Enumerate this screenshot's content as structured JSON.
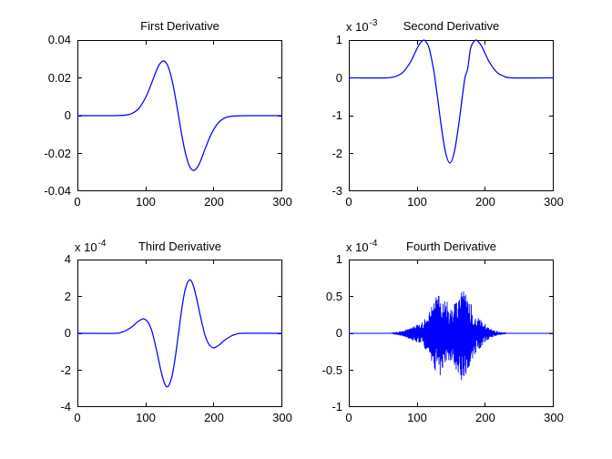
{
  "figure": {
    "background": "#ffffff",
    "axes_color": "#000000",
    "text_color": "#000000",
    "line_color": "#0000ff"
  },
  "chart_data": [
    {
      "id": "first-derivative",
      "type": "line",
      "title": "First Derivative",
      "exponent_base": "",
      "exponent_power": "",
      "xlim": [
        0,
        300
      ],
      "ylim": [
        -0.04,
        0.04
      ],
      "x_tick_labels": [
        "0",
        "100",
        "200",
        "300"
      ],
      "y_tick_labels": [
        "0.04",
        "0.02",
        "0",
        "-0.02",
        "-0.04"
      ],
      "line_color": "#0000ff",
      "smooth": true,
      "points": [
        [
          0,
          0
        ],
        [
          50,
          0
        ],
        [
          60,
          0.0001
        ],
        [
          70,
          0.0003
        ],
        [
          80,
          0.0012
        ],
        [
          90,
          0.0039
        ],
        [
          100,
          0.0097
        ],
        [
          108,
          0.0166
        ],
        [
          115,
          0.0233
        ],
        [
          120,
          0.0271
        ],
        [
          126,
          0.029
        ],
        [
          132,
          0.0267
        ],
        [
          138,
          0.0196
        ],
        [
          143,
          0.0106
        ],
        [
          148,
          0
        ],
        [
          153,
          -0.0106
        ],
        [
          158,
          -0.0196
        ],
        [
          164,
          -0.0267
        ],
        [
          170,
          -0.029
        ],
        [
          176,
          -0.0271
        ],
        [
          181,
          -0.0233
        ],
        [
          188,
          -0.0166
        ],
        [
          196,
          -0.0097
        ],
        [
          206,
          -0.0039
        ],
        [
          216,
          -0.0012
        ],
        [
          226,
          -0.0003
        ],
        [
          236,
          -0.0001
        ],
        [
          246,
          0
        ],
        [
          300,
          0
        ]
      ]
    },
    {
      "id": "second-derivative",
      "type": "line",
      "title": "Second Derivative",
      "exponent_base": "x 10",
      "exponent_power": "-3",
      "xlim": [
        0,
        300
      ],
      "ylim": [
        -3,
        1
      ],
      "x_tick_labels": [
        "0",
        "100",
        "200",
        "300"
      ],
      "y_tick_labels": [
        "1",
        "0",
        "-1",
        "-2",
        "-3"
      ],
      "line_color": "#0000ff",
      "smooth": true,
      "points": [
        [
          0,
          0
        ],
        [
          55,
          0
        ],
        [
          70,
          0.05
        ],
        [
          80,
          0.16
        ],
        [
          90,
          0.41
        ],
        [
          96,
          0.63
        ],
        [
          102,
          0.85
        ],
        [
          106,
          0.95
        ],
        [
          110,
          1.0
        ],
        [
          114,
          0.93
        ],
        [
          118,
          0.76
        ],
        [
          124,
          0.24
        ],
        [
          126,
          0
        ],
        [
          130,
          -0.53
        ],
        [
          136,
          -1.36
        ],
        [
          142,
          -2.0
        ],
        [
          148,
          -2.25
        ],
        [
          154,
          -2.0
        ],
        [
          160,
          -1.36
        ],
        [
          166,
          -0.53
        ],
        [
          170,
          0
        ],
        [
          174,
          0.24
        ],
        [
          178,
          0.76
        ],
        [
          182,
          0.93
        ],
        [
          186,
          1.0
        ],
        [
          190,
          0.95
        ],
        [
          194,
          0.85
        ],
        [
          200,
          0.63
        ],
        [
          206,
          0.41
        ],
        [
          216,
          0.16
        ],
        [
          226,
          0.05
        ],
        [
          240,
          0
        ],
        [
          300,
          0
        ]
      ]
    },
    {
      "id": "third-derivative",
      "type": "line",
      "title": "Third Derivative",
      "exponent_base": "x 10",
      "exponent_power": "-4",
      "xlim": [
        0,
        300
      ],
      "ylim": [
        -4,
        4
      ],
      "x_tick_labels": [
        "0",
        "100",
        "200",
        "300"
      ],
      "y_tick_labels": [
        "4",
        "2",
        "0",
        "-2",
        "-4"
      ],
      "line_color": "#0000ff",
      "smooth": true,
      "points": [
        [
          0,
          0
        ],
        [
          55,
          0
        ],
        [
          65,
          0.07
        ],
        [
          70,
          0.13
        ],
        [
          80,
          0.36
        ],
        [
          88,
          0.62
        ],
        [
          93,
          0.74
        ],
        [
          97,
          0.79
        ],
        [
          101,
          0.7
        ],
        [
          104,
          0.57
        ],
        [
          107,
          0.33
        ],
        [
          110,
          0
        ],
        [
          116,
          -0.94
        ],
        [
          122,
          -1.98
        ],
        [
          127,
          -2.66
        ],
        [
          132,
          -2.9
        ],
        [
          138,
          -2.4
        ],
        [
          143,
          -1.37
        ],
        [
          148,
          0
        ],
        [
          153,
          1.37
        ],
        [
          158,
          2.4
        ],
        [
          164,
          2.9
        ],
        [
          169,
          2.66
        ],
        [
          174,
          1.98
        ],
        [
          180,
          0.94
        ],
        [
          186,
          0
        ],
        [
          189,
          -0.33
        ],
        [
          192,
          -0.57
        ],
        [
          195,
          -0.7
        ],
        [
          199,
          -0.79
        ],
        [
          203,
          -0.74
        ],
        [
          208,
          -0.62
        ],
        [
          216,
          -0.36
        ],
        [
          226,
          -0.13
        ],
        [
          231,
          -0.07
        ],
        [
          241,
          0
        ],
        [
          300,
          0
        ]
      ]
    },
    {
      "id": "fourth-derivative",
      "type": "line-noisy",
      "title": "Fourth Derivative",
      "exponent_base": "x 10",
      "exponent_power": "-4",
      "xlim": [
        0,
        300
      ],
      "ylim": [
        -1,
        1
      ],
      "x_tick_labels": [
        "0",
        "100",
        "200",
        "300"
      ],
      "y_tick_labels": [
        "1",
        "0.5",
        "0",
        "-0.5",
        "-1"
      ],
      "line_color": "#0000ff",
      "baseline_y": 0,
      "noise_x_range": [
        60,
        240
      ],
      "noise_envelope": [
        [
          60,
          0.01
        ],
        [
          70,
          0.02
        ],
        [
          80,
          0.04
        ],
        [
          88,
          0.07
        ],
        [
          95,
          0.1
        ],
        [
          102,
          0.12
        ],
        [
          108,
          0.16
        ],
        [
          114,
          0.22
        ],
        [
          120,
          0.33
        ],
        [
          126,
          0.47
        ],
        [
          131,
          0.58
        ],
        [
          136,
          0.52
        ],
        [
          141,
          0.44
        ],
        [
          146,
          0.36
        ],
        [
          150,
          0.34
        ],
        [
          155,
          0.42
        ],
        [
          160,
          0.52
        ],
        [
          165,
          0.6
        ],
        [
          170,
          0.55
        ],
        [
          175,
          0.46
        ],
        [
          180,
          0.34
        ],
        [
          185,
          0.26
        ],
        [
          190,
          0.21
        ],
        [
          196,
          0.15
        ],
        [
          202,
          0.1
        ],
        [
          208,
          0.06
        ],
        [
          214,
          0.04
        ],
        [
          222,
          0.02
        ],
        [
          230,
          0.012
        ],
        [
          240,
          0.008
        ]
      ]
    }
  ]
}
